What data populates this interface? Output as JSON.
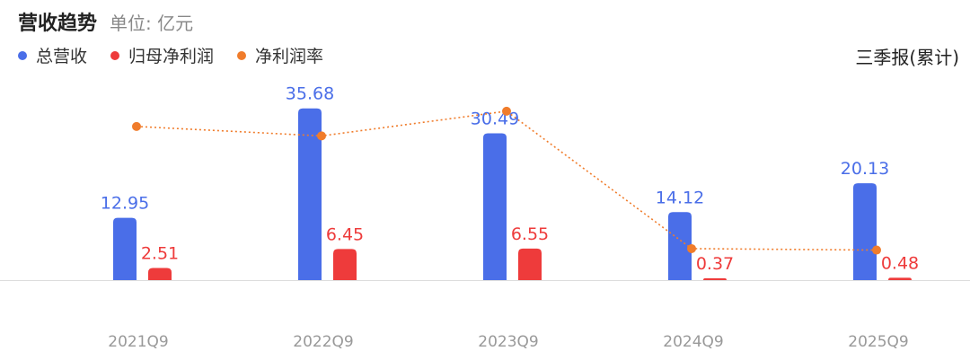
{
  "header": {
    "title": "营收趋势",
    "unit": "单位: 亿元",
    "period_filter": "三季报(累计)"
  },
  "colors": {
    "revenue": "#4A6EE8",
    "net_profit": "#EE3B3B",
    "net_margin": "#F07C2B"
  },
  "chart_data": {
    "type": "bar",
    "categories": [
      "2021Q9",
      "2022Q9",
      "2023Q9",
      "2024Q9",
      "2025Q9"
    ],
    "series": [
      {
        "name": "总营收",
        "type": "bar",
        "values": [
          12.95,
          35.68,
          30.49,
          14.12,
          20.13
        ],
        "labels": [
          "12.95",
          "35.68",
          "30.49",
          "14.12",
          "20.13"
        ]
      },
      {
        "name": "归母净利润",
        "type": "bar",
        "values": [
          2.51,
          6.45,
          6.55,
          0.37,
          0.48
        ],
        "labels": [
          "2.51",
          "6.45",
          "6.55",
          "0.37",
          "0.48"
        ]
      },
      {
        "name": "净利润率",
        "type": "line",
        "values": [
          19.4,
          18.1,
          21.5,
          2.6,
          2.4
        ]
      }
    ],
    "ylim": [
      0,
      36
    ],
    "legend_position": "top-left"
  }
}
